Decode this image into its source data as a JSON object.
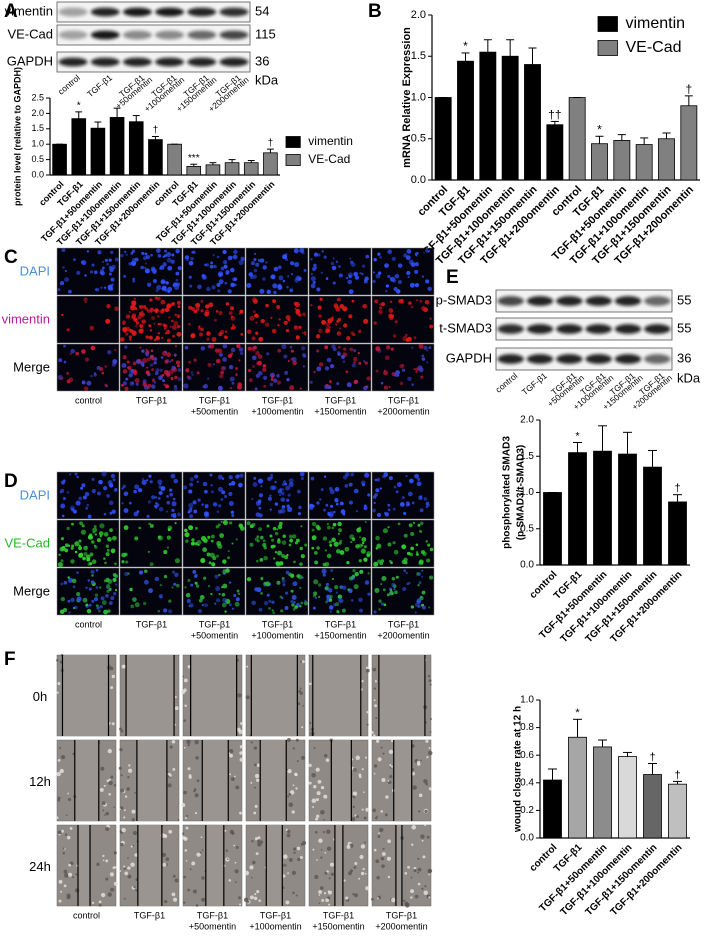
{
  "panel_labels": [
    "A",
    "B",
    "C",
    "D",
    "E",
    "F"
  ],
  "blot_A": {
    "proteins": [
      "vimentin",
      "VE-Cad",
      "GAPDH"
    ],
    "sizes": [
      "54",
      "115",
      "36"
    ],
    "unit": "kDa",
    "lanes": [
      [
        "control"
      ],
      [
        "TGF-β1"
      ],
      [
        "TGF-β1",
        "+50omentin"
      ],
      [
        "TGF-β1",
        "+100omentin"
      ],
      [
        "TGF-β1",
        "+150omentin"
      ],
      [
        "TGF-β1",
        "+200omentin"
      ]
    ]
  },
  "micro_C": {
    "rows": [
      "DAPI",
      "vimentin",
      "Merge"
    ],
    "columns": [
      [
        "control"
      ],
      [
        "TGF-β1"
      ],
      [
        "TGF-β1",
        "+50omentin"
      ],
      [
        "TGF-β1",
        "+100omentin"
      ],
      [
        "TGF-β1",
        "+150omentin"
      ],
      [
        "TGF-β1",
        "+200omentin"
      ]
    ]
  },
  "micro_D": {
    "rows": [
      "DAPI",
      "VE-Cad",
      "Merge"
    ],
    "columns": [
      [
        "control"
      ],
      [
        "TGF-β1"
      ],
      [
        "TGF-β1",
        "+50omentin"
      ],
      [
        "TGF-β1",
        "+100omentin"
      ],
      [
        "TGF-β1",
        "+150omentin"
      ],
      [
        "TGF-β1",
        "+200omentin"
      ]
    ]
  },
  "blot_E": {
    "proteins": [
      "p-SMAD3",
      "t-SMAD3",
      "GAPDH"
    ],
    "sizes": [
      "55",
      "55",
      "36"
    ],
    "unit": "kDa",
    "lanes": [
      [
        "control"
      ],
      [
        "TGF-β1"
      ],
      [
        "TGF-β1",
        "+50omentin"
      ],
      [
        "TGF-β1",
        "+100omentin"
      ],
      [
        "TGF-β1",
        "+150omentin"
      ],
      [
        "TGF-β1",
        "+200omentin"
      ]
    ]
  },
  "micro_F": {
    "rows": [
      "0h",
      "12h",
      "24h"
    ],
    "columns": [
      [
        "control"
      ],
      [
        "TGF-β1"
      ],
      [
        "TGF-β1",
        "+50omentin"
      ],
      [
        "TGF-β1",
        "+100omentin"
      ],
      [
        "TGF-β1",
        "+150omentin"
      ],
      [
        "TGF-β1",
        "+200omentin"
      ]
    ]
  },
  "chart_data": [
    {
      "type": "bar",
      "ylabel": [
        "protein level (relative to GAPDH)"
      ],
      "categories": [
        "control",
        "TGF-β1",
        "TGF-β1+50omentin",
        "TGF-β1+100omentin",
        "TGF-β1+150omentin",
        "TGF-β1+200omentin",
        "control",
        "TGF-β1",
        "TGF-β1+50omentin",
        "TGF-β1+100omentin",
        "TGF-β1+150omentin",
        "TGF-β1+200omentin"
      ],
      "ylim": [
        0,
        2.5
      ],
      "yticks": [
        {
          "value": 0,
          "label": "0.0"
        },
        0.5,
        {
          "value": 1,
          "label": "1.0"
        },
        1.5,
        {
          "value": 2,
          "label": "2.0"
        },
        2.5
      ],
      "legend": "right",
      "series": [
        {
          "name": "vimentin",
          "color": "#000000",
          "values": [
            1.0,
            1.83,
            1.52,
            1.87,
            1.73,
            1.15,
            null,
            null,
            null,
            null,
            null,
            null
          ],
          "errors": [
            0,
            0.22,
            0.2,
            0.3,
            0.2,
            0.1,
            null,
            null,
            null,
            null,
            null,
            null
          ],
          "significance": [
            null,
            "*",
            null,
            null,
            null,
            "†",
            null,
            null,
            null,
            null,
            null,
            null
          ]
        },
        {
          "name": "VE-Cad",
          "color": "#808080",
          "values": [
            null,
            null,
            null,
            null,
            null,
            null,
            1.0,
            0.28,
            0.33,
            0.4,
            0.4,
            0.72
          ],
          "errors": [
            null,
            null,
            null,
            null,
            null,
            null,
            0,
            0.07,
            0.07,
            0.1,
            0.07,
            0.12
          ],
          "significance": [
            null,
            null,
            null,
            null,
            null,
            null,
            null,
            "***",
            null,
            null,
            null,
            "†"
          ]
        }
      ]
    },
    {
      "type": "bar",
      "ylabel": [
        "mRNA Relative Expression"
      ],
      "categories": [
        "control",
        "TGF-β1",
        "TGF-β1+50omentin",
        "TGF-β1+100omentin",
        "TGF-β1+150omentin",
        "TGF-β1+200omentin",
        "control",
        "TGF-β1",
        "TGF-β1+50omentin",
        "TGF-β1+100omentin",
        "TGF-β1+150omentin",
        "TGF-β1+200omentin"
      ],
      "ylim": [
        0,
        2
      ],
      "yticks": [
        {
          "value": 0,
          "label": "0.0"
        },
        0.5,
        {
          "value": 1,
          "label": "1.0"
        },
        1.5,
        {
          "value": 2,
          "label": "2.0"
        }
      ],
      "legend": "upper right",
      "series": [
        {
          "name": "vimentin",
          "color": "#000000",
          "values": [
            1.0,
            1.44,
            1.55,
            1.5,
            1.4,
            0.67,
            null,
            null,
            null,
            null,
            null,
            null
          ],
          "errors": [
            0,
            0.1,
            0.15,
            0.2,
            0.2,
            0.04,
            null,
            null,
            null,
            null,
            null,
            null
          ],
          "significance": [
            null,
            "*",
            null,
            null,
            null,
            "††",
            null,
            null,
            null,
            null,
            null,
            null
          ]
        },
        {
          "name": "VE-Cad",
          "color": "#808080",
          "values": [
            null,
            null,
            null,
            null,
            null,
            null,
            1.0,
            0.44,
            0.48,
            0.43,
            0.5,
            0.9
          ],
          "errors": [
            null,
            null,
            null,
            null,
            null,
            null,
            0,
            0.09,
            0.07,
            0.08,
            0.07,
            0.12
          ],
          "significance": [
            null,
            null,
            null,
            null,
            null,
            null,
            null,
            "*",
            null,
            null,
            null,
            "†"
          ]
        }
      ]
    },
    {
      "type": "bar",
      "ylabel": [
        "phosphorylated SMAD3",
        "(p-SMAD3/t-SMAD3)"
      ],
      "categories": [
        "control",
        "TGF-β1",
        "TGF-β1+50omentin",
        "TGF-β1+100omentin",
        "TGF-β1+150omentin",
        "TGF-β1+200omentin"
      ],
      "ylim": [
        0,
        2
      ],
      "yticks": [
        {
          "value": 0,
          "label": "0.0"
        },
        0.5,
        {
          "value": 1,
          "label": "1.0"
        },
        1.5,
        {
          "value": 2,
          "label": "2.0"
        }
      ],
      "series": [
        {
          "colors": [
            "#000000",
            "#000000",
            "#000000",
            "#000000",
            "#000000",
            "#000000"
          ],
          "values": [
            1.0,
            1.55,
            1.57,
            1.53,
            1.35,
            0.87
          ],
          "errors": [
            0,
            0.14,
            0.35,
            0.3,
            0.23,
            0.1
          ],
          "significance": [
            null,
            "*",
            null,
            null,
            null,
            "†"
          ]
        }
      ]
    },
    {
      "type": "bar",
      "ylabel": [
        "wound closure rate at 12 h"
      ],
      "categories": [
        "control",
        "TGF-β1",
        "TGF-β1+50omentin",
        "TGF-β1+100omentin",
        "TGF-β1+150omentin",
        "TGF-β1+200omentin"
      ],
      "ylim": [
        0,
        1
      ],
      "yticks": [
        {
          "value": 0,
          "label": "0.0"
        },
        0.2,
        0.4,
        0.6,
        0.8,
        {
          "value": 1,
          "label": "1.0"
        }
      ],
      "series": [
        {
          "colors": [
            "#000000",
            "#a6a6a6",
            "#8c8c8c",
            "#d9d9d9",
            "#666666",
            "#bfbfbf"
          ],
          "values": [
            0.42,
            0.73,
            0.66,
            0.59,
            0.46,
            0.39
          ],
          "errors": [
            0.08,
            0.13,
            0.05,
            0.03,
            0.08,
            0.02
          ],
          "significance": [
            null,
            "*",
            null,
            null,
            "†",
            "†"
          ]
        }
      ]
    }
  ]
}
